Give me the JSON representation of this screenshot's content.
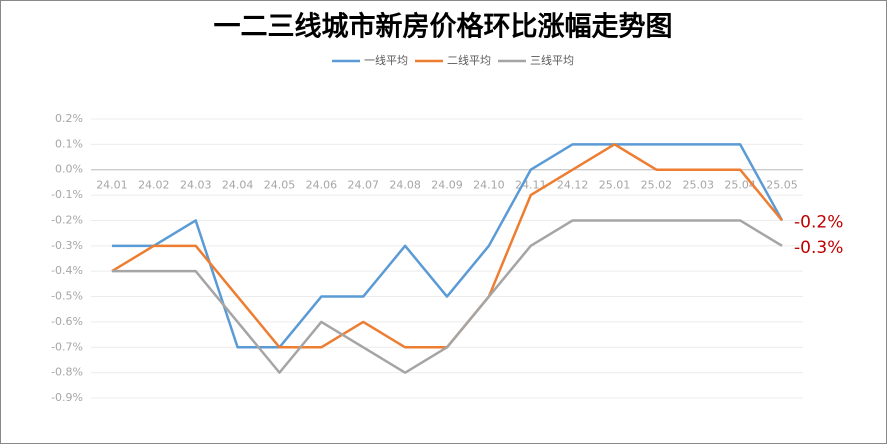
{
  "chart_data": {
    "type": "line",
    "title": "一二三线城市新房价格环比涨幅走势图",
    "categories": [
      "24.01",
      "24.02",
      "24.03",
      "24.04",
      "24.05",
      "24.06",
      "24.07",
      "24.08",
      "24.09",
      "24.10",
      "24.11",
      "24.12",
      "25.01",
      "25.02",
      "25.03",
      "25.04",
      "25.05"
    ],
    "series": [
      {
        "name": "一线平均",
        "color": "#5b9bd5",
        "values": [
          -0.3,
          -0.3,
          -0.2,
          -0.7,
          -0.7,
          -0.5,
          -0.5,
          -0.3,
          -0.5,
          -0.3,
          0,
          0.1,
          0.1,
          0.1,
          0.1,
          0.1,
          -0.2
        ],
        "value_labels": [
          null,
          null,
          null,
          null,
          null,
          null,
          null,
          null,
          null,
          null,
          null,
          null,
          null,
          null,
          null,
          null,
          "-0.2%"
        ]
      },
      {
        "name": "二线平均",
        "color": "#ed7d31",
        "values": [
          -0.4,
          -0.3,
          -0.3,
          -0.5,
          -0.7,
          -0.7,
          -0.6,
          -0.7,
          -0.7,
          -0.5,
          -0.1,
          0,
          0.1,
          0,
          0,
          0,
          -0.2
        ]
      },
      {
        "name": "三线平均",
        "color": "#a5a5a5",
        "values": [
          -0.4,
          -0.4,
          -0.4,
          -0.6,
          -0.8,
          -0.6,
          -0.7,
          -0.8,
          -0.7,
          -0.5,
          -0.3,
          -0.2,
          -0.2,
          -0.2,
          -0.2,
          -0.2,
          -0.3
        ],
        "value_labels": [
          null,
          null,
          null,
          null,
          null,
          null,
          null,
          null,
          null,
          null,
          null,
          null,
          null,
          null,
          null,
          null,
          "-0.3%"
        ]
      }
    ],
    "ylim": [
      -0.9,
      0.2
    ],
    "yticks": [
      {
        "value": 0.2,
        "label": "0.2%"
      },
      {
        "value": 0.1,
        "label": "0.1%"
      },
      {
        "value": 0,
        "label": "0.0%"
      },
      {
        "value": -0.1,
        "label": "-0.1%"
      },
      {
        "value": -0.2,
        "label": "-0.2%"
      },
      {
        "value": -0.3,
        "label": "-0.3%"
      },
      {
        "value": -0.4,
        "label": "-0.4%"
      },
      {
        "value": -0.5,
        "label": "-0.5%"
      },
      {
        "value": -0.6,
        "label": "-0.6%"
      },
      {
        "value": -0.7,
        "label": "-0.7%"
      },
      {
        "value": -0.8,
        "label": "-0.8%"
      },
      {
        "value": -0.9,
        "label": "-0.9%"
      }
    ],
    "grid": true,
    "label_color": "#c00000"
  }
}
